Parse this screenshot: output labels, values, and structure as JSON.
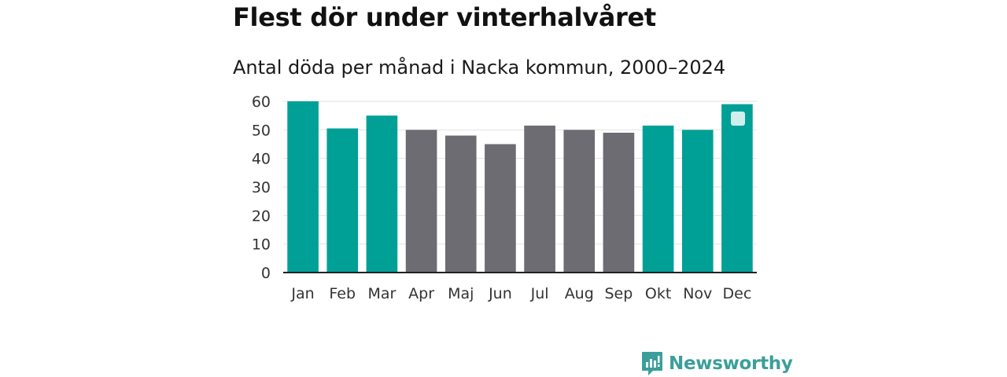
{
  "header": {
    "title": "Flest dör under vinterhalvåret",
    "subtitle": "Antal döda per månad i Nacka kommun, 2000–2024"
  },
  "brand": {
    "name": "Newsworthy",
    "color": "#3a9f9a"
  },
  "colors": {
    "highlight": "#00a096",
    "default": "#6d6c72",
    "grid": "#e2e2e2",
    "axis": "#222222"
  },
  "legend": {
    "position": "top-right",
    "swatch_color": "#cfeeed"
  },
  "chart_data": {
    "type": "bar",
    "title": "Flest dör under vinterhalvåret",
    "subtitle": "Antal döda per månad i Nacka kommun, 2000–2024",
    "xlabel": "",
    "ylabel": "",
    "categories": [
      "Jan",
      "Feb",
      "Mar",
      "Apr",
      "Maj",
      "Jun",
      "Jul",
      "Aug",
      "Sep",
      "Okt",
      "Nov",
      "Dec"
    ],
    "values": [
      60,
      50.5,
      55,
      50,
      48,
      45,
      51.5,
      50,
      49,
      51.5,
      50,
      59
    ],
    "highlighted": [
      true,
      true,
      true,
      false,
      false,
      false,
      false,
      false,
      false,
      true,
      true,
      true
    ],
    "yticks": [
      0,
      10,
      20,
      30,
      40,
      50,
      60
    ],
    "ylim": [
      0,
      60
    ],
    "grid": true
  }
}
